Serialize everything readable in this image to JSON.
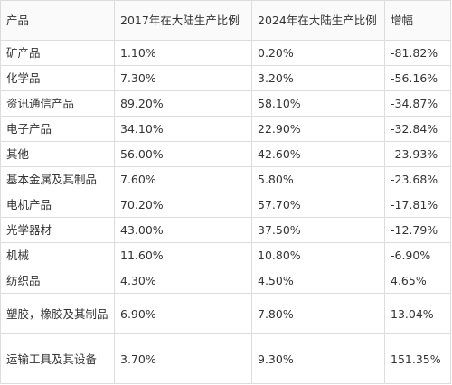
{
  "table": {
    "headers": [
      "产品",
      "2017年在大陆生产比例",
      "2024年在大陆生产比例",
      "增幅"
    ],
    "rows": [
      [
        "矿产品",
        "1.10%",
        "0.20%",
        "-81.82%"
      ],
      [
        "化学品",
        "7.30%",
        "3.20%",
        "-56.16%"
      ],
      [
        "资讯通信产品",
        "89.20%",
        "58.10%",
        "-34.87%"
      ],
      [
        "电子产品",
        "34.10%",
        "22.90%",
        "-32.84%"
      ],
      [
        "其他",
        "56.00%",
        "42.60%",
        "-23.93%"
      ],
      [
        "基本金属及其制品",
        "7.60%",
        "5.80%",
        "-23.68%"
      ],
      [
        "电机产品",
        "70.20%",
        "57.70%",
        "-17.81%"
      ],
      [
        "光学器材",
        "43.00%",
        "37.50%",
        "-12.79%"
      ],
      [
        "机械",
        "11.60%",
        "10.80%",
        "-6.90%"
      ],
      [
        "纺织品",
        "4.30%",
        "4.50%",
        "4.65%"
      ],
      [
        "塑胶，橡胶及其制品",
        "6.90%",
        "7.80%",
        "13.04%"
      ],
      [
        "运输工具及其设备",
        "3.70%",
        "9.30%",
        "151.35%"
      ]
    ]
  }
}
